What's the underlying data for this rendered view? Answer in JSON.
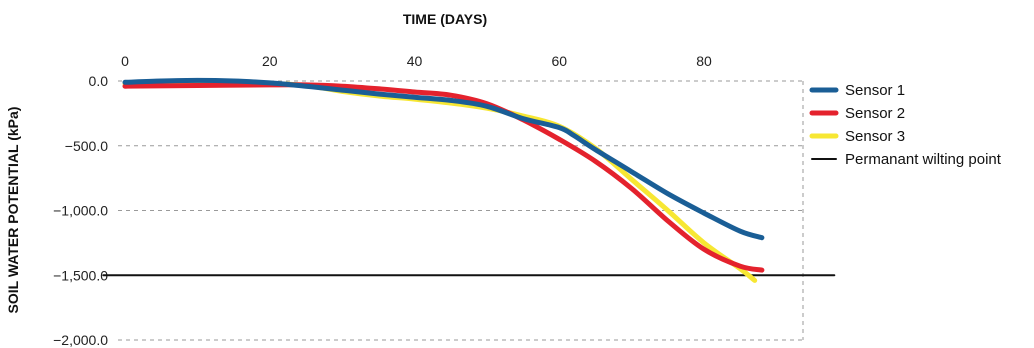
{
  "chart_data": {
    "type": "line",
    "title": "",
    "xlabel": "TIME (DAYS)",
    "ylabel": "SOIL WATER POTENTIAL (kPa)",
    "xlim": [
      0,
      88
    ],
    "ylim": [
      -2000,
      0
    ],
    "x_ticks": [
      0,
      20,
      40,
      60,
      80
    ],
    "y_ticks": [
      0,
      -500,
      -1000,
      -1500,
      -2000
    ],
    "x_tick_labels": [
      "0",
      "20",
      "40",
      "60",
      "80"
    ],
    "y_tick_labels": [
      "0.0",
      "−500.0",
      "−1,000.0",
      "−1,500.0",
      "−2,000.0"
    ],
    "x_axis_position": "top",
    "grid": "horizontal dashed",
    "legend_position": "right",
    "series": [
      {
        "name": "Sensor 1",
        "color": "#1a5e96",
        "x": [
          0,
          5,
          10,
          15,
          20,
          25,
          30,
          35,
          40,
          45,
          50,
          55,
          60,
          62,
          65,
          70,
          75,
          80,
          85,
          88
        ],
        "y": [
          -10,
          0,
          5,
          0,
          -15,
          -40,
          -70,
          -100,
          -125,
          -150,
          -195,
          -290,
          -360,
          -420,
          -530,
          -700,
          -870,
          -1020,
          -1160,
          -1210
        ]
      },
      {
        "name": "Sensor 2",
        "color": "#e4222d",
        "x": [
          0,
          10,
          20,
          25,
          30,
          35,
          40,
          45,
          50,
          55,
          60,
          65,
          70,
          75,
          80,
          85,
          88
        ],
        "y": [
          -40,
          -35,
          -30,
          -30,
          -40,
          -60,
          -85,
          -110,
          -175,
          -300,
          -450,
          -620,
          -830,
          -1080,
          -1300,
          -1430,
          -1460
        ]
      },
      {
        "name": "Sensor 3",
        "color": "#f7e733",
        "x": [
          0,
          10,
          20,
          25,
          30,
          35,
          40,
          45,
          50,
          55,
          60,
          65,
          70,
          75,
          80,
          85,
          87
        ],
        "y": [
          -20,
          -15,
          -20,
          -35,
          -80,
          -115,
          -140,
          -170,
          -210,
          -270,
          -350,
          -520,
          -760,
          -1000,
          -1250,
          -1450,
          -1540
        ]
      },
      {
        "name": "Permanant wilting point",
        "color": "#111111",
        "x": [
          -3,
          98
        ],
        "y": [
          -1500,
          -1500
        ]
      }
    ]
  }
}
